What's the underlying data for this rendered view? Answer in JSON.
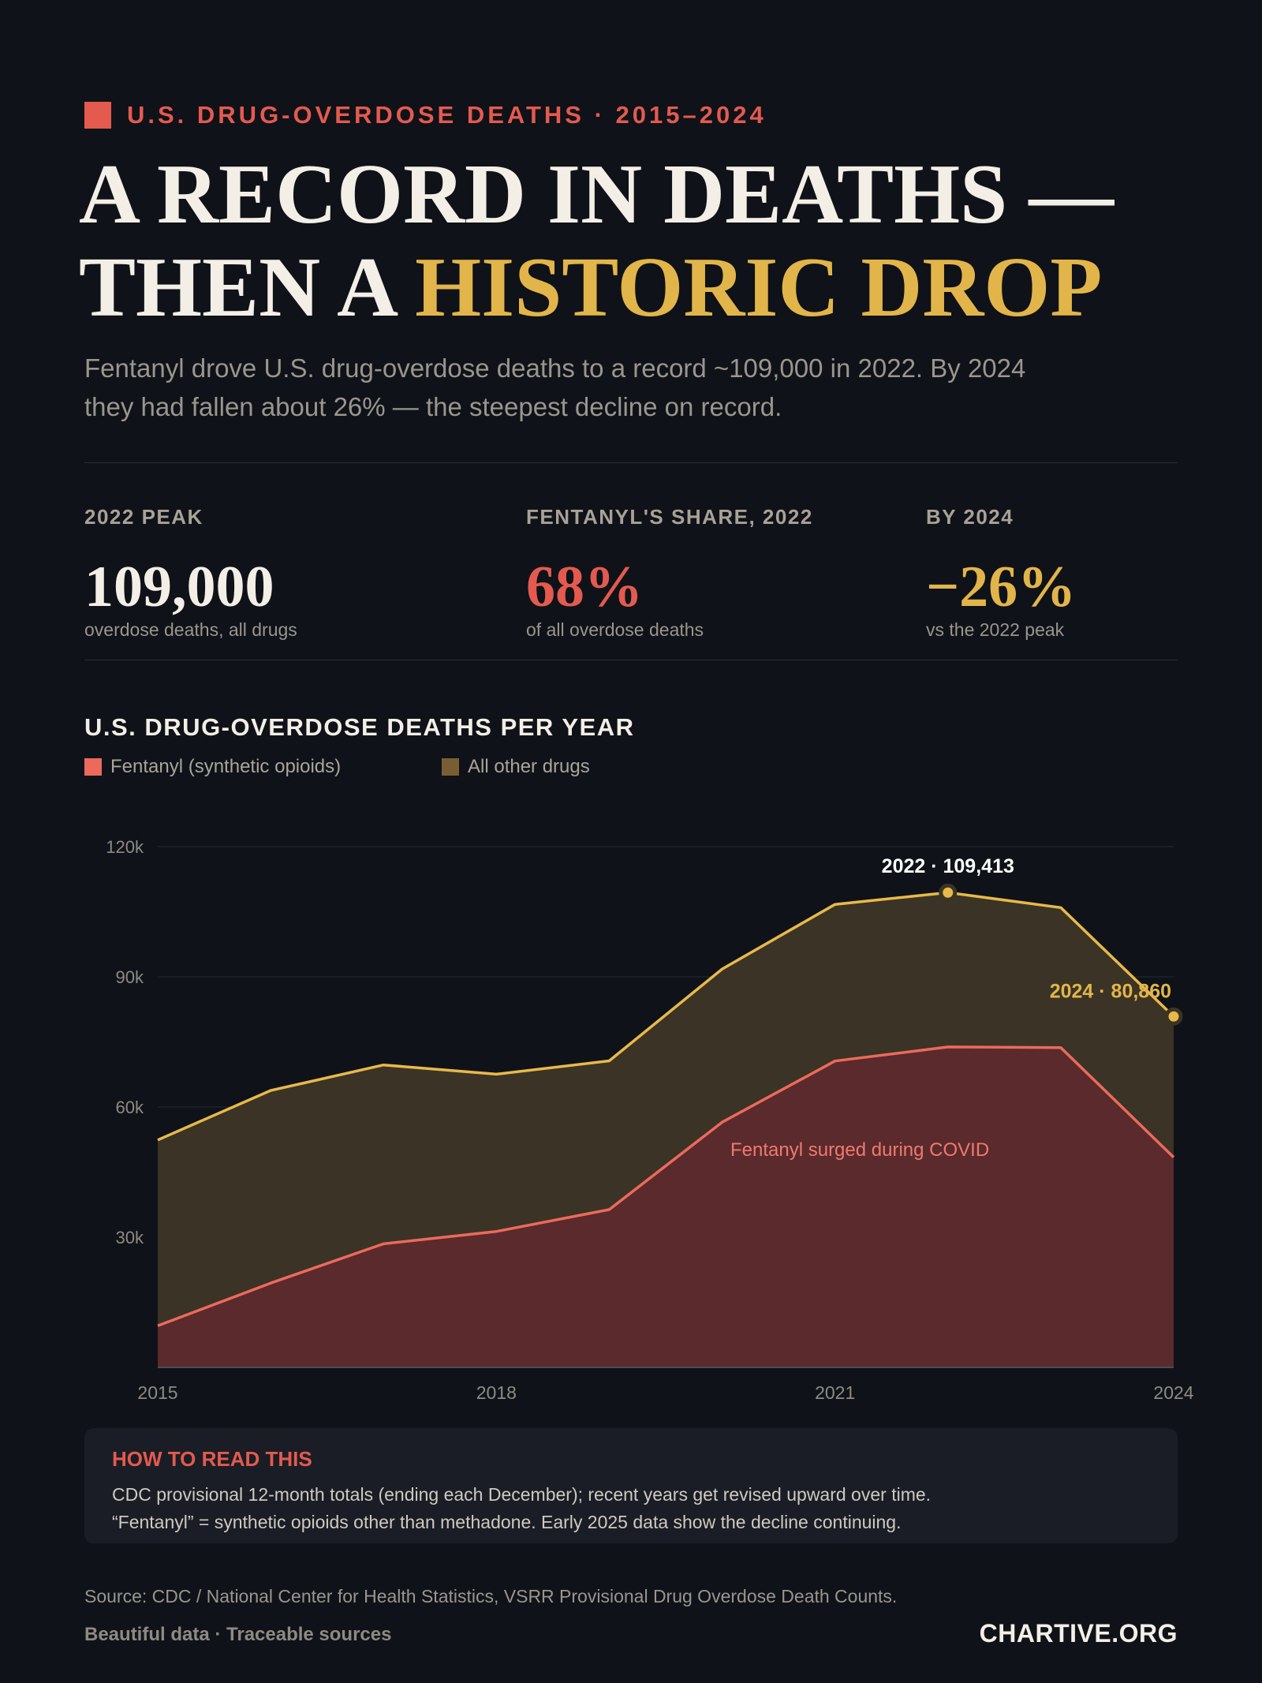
{
  "kicker": "U.S. DRUG-OVERDOSE DEATHS · 2015–2024",
  "headline": {
    "line1": "A RECORD IN DEATHS —",
    "line2_prefix": "THEN A ",
    "line2_accent": "HISTORIC DROP"
  },
  "subtitle": {
    "line1": "Fentanyl drove U.S. drug-overdose deaths to a record ~109,000 in 2022. By 2024",
    "line2": "they had fallen about 26% — the steepest decline on record."
  },
  "stats": [
    {
      "label": "2022 PEAK",
      "value": "109,000",
      "sub": "overdose deaths, all drugs",
      "color": "#f3efe6"
    },
    {
      "label": "FENTANYL'S SHARE, 2022",
      "value": "68%",
      "sub": "of all overdose deaths",
      "color": "#e45a4f"
    },
    {
      "label": "BY 2024",
      "value": "−26%",
      "sub": "vs the 2022 peak",
      "color": "#e2b54a"
    }
  ],
  "chart_title": "U.S. DRUG-OVERDOSE DEATHS PER YEAR",
  "colors": {
    "fentanyl_line": "#ec6a5c",
    "fentanyl_fill": "#5a2a2d",
    "total_line": "#e8b94a",
    "total_fill": "#3b3325",
    "other_swatch": "#7a5e33",
    "grid": "#252a33"
  },
  "chart_data": {
    "type": "area",
    "x": [
      2015,
      2016,
      2017,
      2018,
      2019,
      2020,
      2021,
      2022,
      2023,
      2024
    ],
    "series": [
      {
        "name": "Fentanyl (synthetic opioids)",
        "values": [
          9580,
          19413,
          28466,
          31335,
          36359,
          56516,
          70601,
          73838,
          73690,
          48422
        ]
      },
      {
        "name": "All other drugs",
        "values": [
          42824,
          44382,
          41233,
          36222,
          34271,
          35283,
          36098,
          35575,
          32263,
          32438
        ]
      }
    ],
    "totals": [
      52404,
      63795,
      69699,
      67557,
      70630,
      91799,
      106699,
      109413,
      105953,
      80860
    ],
    "x_ticks": [
      "2015",
      "2018",
      "2021",
      "2024"
    ],
    "y_ticks": [
      "30k",
      "60k",
      "90k",
      "120k"
    ],
    "ylim": [
      0,
      120000
    ],
    "annotations": [
      {
        "text": "2022 · 109,413"
      },
      {
        "text": "2024 · 80,860"
      },
      {
        "text": "Fentanyl surged during COVID"
      }
    ]
  },
  "howto": {
    "title": "HOW TO READ THIS",
    "line1": "CDC provisional 12-month totals (ending each December); recent years get revised upward over time.",
    "line2": "“Fentanyl” = synthetic opioids other than methadone. Early 2025 data show the decline continuing."
  },
  "footer": {
    "source": "Source: CDC / National Center for Health Statistics, VSRR Provisional Drug Overdose Death Counts.",
    "tagline": "Beautiful data · Traceable sources",
    "brand": "CHARTIVE.ORG"
  }
}
